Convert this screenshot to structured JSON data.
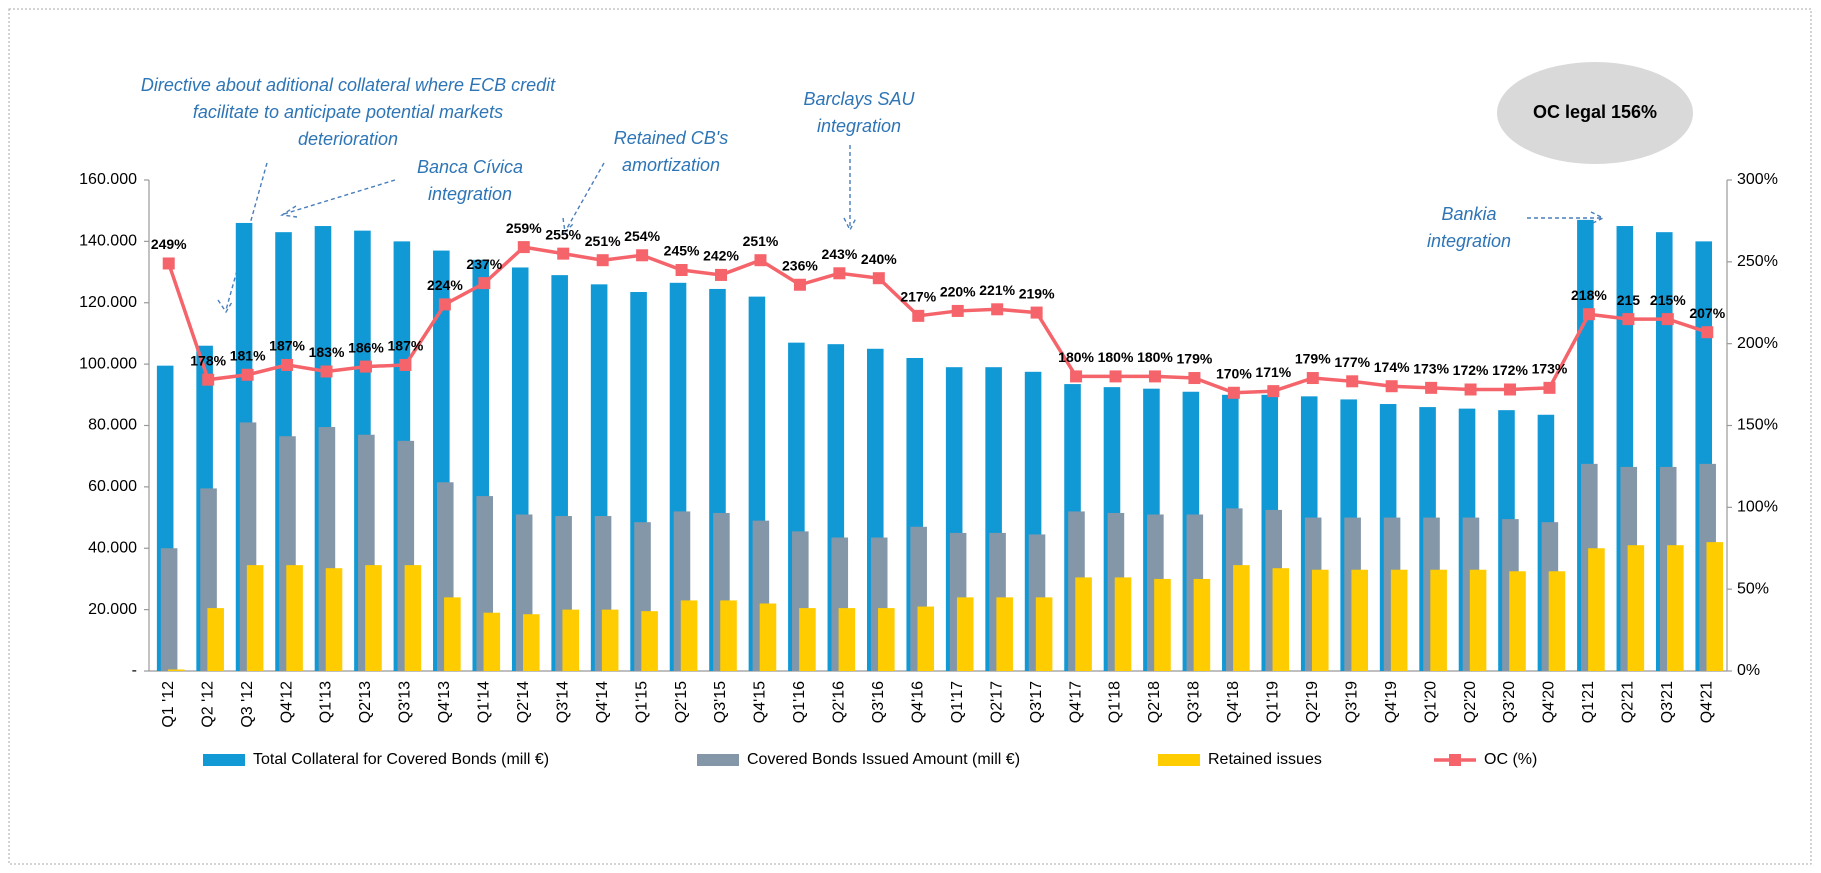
{
  "chart_data": {
    "type": "bar",
    "categories": [
      "Q1 '12",
      "Q2 '12",
      "Q3 '12",
      "Q4'12",
      "Q1'13",
      "Q2'13",
      "Q3'13",
      "Q4'13",
      "Q1'14",
      "Q2'14",
      "Q3'14",
      "Q4'14",
      "Q1'15",
      "Q2'15",
      "Q3'15",
      "Q4'15",
      "Q1'16",
      "Q2'16",
      "Q3'16",
      "Q4'16",
      "Q1'17",
      "Q2'17",
      "Q3'17",
      "Q4'17",
      "Q1'18",
      "Q2'18",
      "Q3'18",
      "Q4'18",
      "Q1'19",
      "Q2'19",
      "Q3'19",
      "Q4'19",
      "Q1'20",
      "Q2'20",
      "Q3'20",
      "Q4'20",
      "Q1'21",
      "Q2'21",
      "Q3'21",
      "Q4'21"
    ],
    "series": [
      {
        "name": "Total Collateral for Covered Bonds (mill €)",
        "color": "#1199d6",
        "type": "bar",
        "values": [
          99500,
          106000,
          146000,
          143000,
          145000,
          143500,
          140000,
          137000,
          134000,
          131500,
          129000,
          126000,
          123500,
          126500,
          124500,
          122000,
          107000,
          106500,
          105000,
          102000,
          99000,
          99000,
          97500,
          93500,
          92500,
          92000,
          91000,
          90000,
          90000,
          89500,
          88500,
          87000,
          86000,
          85500,
          85000,
          83500,
          147000,
          145000,
          143000,
          140000
        ]
      },
      {
        "name": "Covered Bonds Issued Amount (mill €)",
        "color": "#8497a8",
        "type": "bar",
        "values": [
          40000,
          59500,
          81000,
          76500,
          79500,
          77000,
          75000,
          61500,
          57000,
          51000,
          50500,
          50500,
          48500,
          52000,
          51500,
          49000,
          45500,
          43500,
          43500,
          47000,
          45000,
          45000,
          44500,
          52000,
          51500,
          51000,
          51000,
          53000,
          52500,
          50000,
          50000,
          50000,
          50000,
          50000,
          49500,
          48500,
          67500,
          66500,
          66500,
          67500
        ]
      },
      {
        "name": "Retained issues",
        "color": "#ffcc00",
        "type": "bar",
        "values": [
          500,
          20500,
          34500,
          34500,
          33500,
          34500,
          34500,
          24000,
          19000,
          18500,
          20000,
          20000,
          19500,
          23000,
          23000,
          22000,
          20500,
          20500,
          20500,
          21000,
          24000,
          24000,
          24000,
          30500,
          30500,
          30000,
          30000,
          34500,
          33500,
          33000,
          33000,
          33000,
          33000,
          33000,
          32500,
          32500,
          40000,
          41000,
          41000,
          42000
        ]
      },
      {
        "name": "OC (%)",
        "color": "#f4646a",
        "type": "line",
        "axis": "y2",
        "values": [
          249,
          178,
          181,
          187,
          183,
          186,
          187,
          224,
          237,
          259,
          255,
          251,
          254,
          245,
          242,
          251,
          236,
          243,
          240,
          217,
          220,
          221,
          219,
          180,
          180,
          180,
          179,
          170,
          171,
          179,
          177,
          174,
          173,
          172,
          172,
          173,
          218,
          215,
          215,
          207
        ],
        "value_labels": [
          "249%",
          "178%",
          "181%",
          "187%",
          "183%",
          "186%",
          "187%",
          "224%",
          "237%",
          "259%",
          "255%",
          "251%",
          "254%",
          "245%",
          "242%",
          "251%",
          "236%",
          "243%",
          "240%",
          "217%",
          "220%",
          "221%",
          "219%",
          "180%",
          "180%",
          "180%",
          "179%",
          "170%",
          "171%",
          "179%",
          "177%",
          "174%",
          "173%",
          "172%",
          "172%",
          "173%",
          "218%",
          "215",
          "215%",
          "207%"
        ]
      }
    ],
    "ylim": [
      0,
      160000
    ],
    "yticks": [
      {
        "value": 0,
        "label": "-"
      },
      {
        "value": 20000,
        "label": "20.000"
      },
      {
        "value": 40000,
        "label": "40.000"
      },
      {
        "value": 60000,
        "label": "60.000"
      },
      {
        "value": 80000,
        "label": "80.000"
      },
      {
        "value": 100000,
        "label": "100.000"
      },
      {
        "value": 120000,
        "label": "120.000"
      },
      {
        "value": 140000,
        "label": "140.000"
      },
      {
        "value": 160000,
        "label": "160.000"
      }
    ],
    "y2lim": [
      0,
      300
    ],
    "y2ticks": [
      {
        "value": 0,
        "label": "0%"
      },
      {
        "value": 50,
        "label": "50%"
      },
      {
        "value": 100,
        "label": "100%"
      },
      {
        "value": 150,
        "label": "150%"
      },
      {
        "value": 200,
        "label": "200%"
      },
      {
        "value": 250,
        "label": "250%"
      },
      {
        "value": 300,
        "label": "300%"
      }
    ],
    "legend": "bottom",
    "annotations": [
      {
        "text": [
          "Directive about aditional collateral where ECB credit",
          "facilitate to anticipate potential markets",
          "deterioration"
        ]
      },
      {
        "text": [
          "Banca Cívica",
          "integration"
        ]
      },
      {
        "text": [
          "Retained CB's",
          "amortization"
        ]
      },
      {
        "text": [
          "Barclays SAU",
          "integration"
        ]
      },
      {
        "text": [
          "Bankia",
          "integration"
        ]
      }
    ],
    "callout": "OC legal 156%"
  }
}
